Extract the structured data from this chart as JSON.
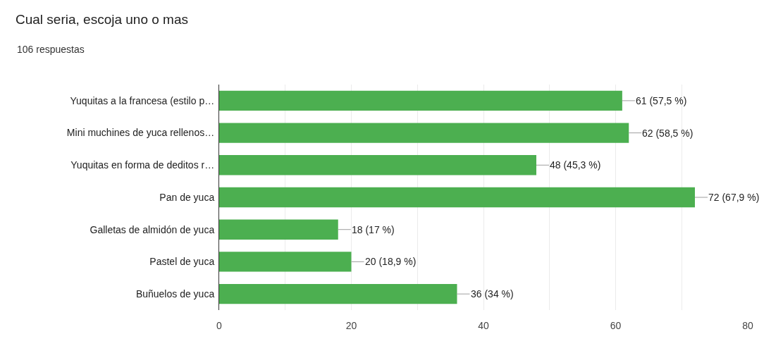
{
  "chart_data": {
    "type": "bar",
    "orientation": "horizontal",
    "title": "Cual seria, escoja uno o mas",
    "subtitle": "106 respuestas",
    "categories": [
      "Yuquitas a la francesa (estilo p…",
      "Mini muchines de yuca rellenos…",
      "Yuquitas en forma de deditos r…",
      "Pan de yuca",
      "Galletas de almidón de yuca",
      "Pastel de yuca",
      "Buñuelos de yuca"
    ],
    "values": [
      61,
      62,
      48,
      72,
      18,
      20,
      36
    ],
    "color": "#4caf50",
    "value_labels": [
      "61 (57,5 %)",
      "62 (58,5 %)",
      "48 (45,3 %)",
      "72 (67,9 %)",
      "18 (17 %)",
      "20 (18,9 %)",
      "36 (34 %)"
    ],
    "xlim": [
      0,
      80
    ],
    "xticks": [
      0,
      {
        "value": 10,
        "label": null
      },
      20,
      {
        "value": 30,
        "label": null
      },
      40,
      {
        "value": 50,
        "label": null
      },
      60,
      {
        "value": 70,
        "label": null
      },
      80
    ],
    "grid": "x"
  }
}
